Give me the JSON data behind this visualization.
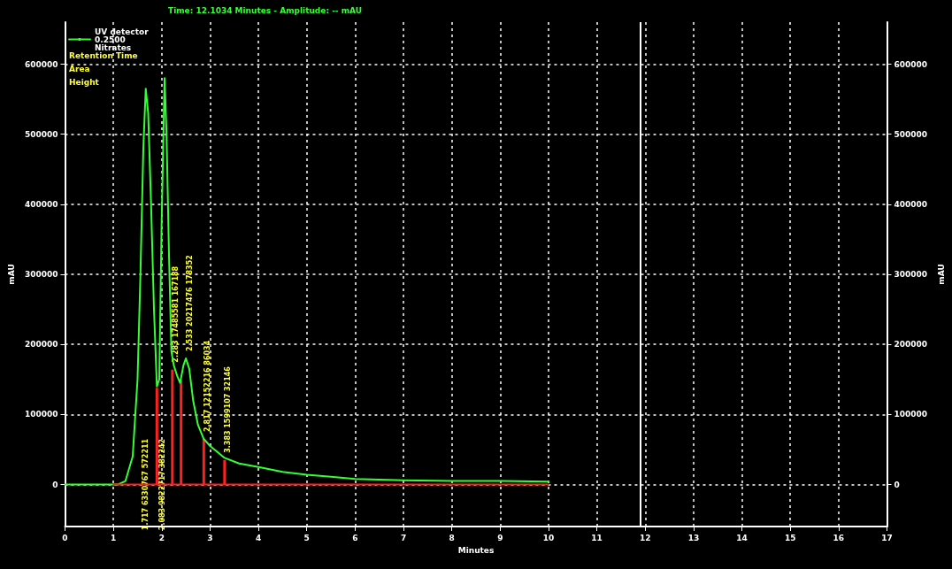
{
  "chart_data": {
    "type": "line",
    "title": "Time: 12.1034 Minutes - Amplitude: -- mAU",
    "xlabel": "Minutes",
    "ylabel": "mAU",
    "y2label": "mAU",
    "xlim": [
      0,
      17
    ],
    "xticks": [
      0,
      1,
      2,
      3,
      4,
      5,
      6,
      7,
      8,
      9,
      10,
      11,
      12,
      13,
      14,
      15,
      16,
      17
    ],
    "ylim": [
      -60000,
      660000
    ],
    "yticks": [
      0,
      100000,
      200000,
      300000,
      400000,
      500000,
      600000
    ],
    "y2lim": [
      -60000,
      660000
    ],
    "y2ticks": [
      0,
      100000,
      200000,
      300000,
      400000,
      500000,
      600000
    ],
    "grid": true,
    "legend": "top left",
    "marker": "none",
    "line_style": "solid",
    "series": [
      {
        "name": "UV detector 0.2500 Nitrates",
        "color": "#33ff33",
        "x": [
          0,
          1.1,
          1.25,
          1.4,
          1.5,
          1.56,
          1.62,
          1.67,
          1.72,
          1.78,
          1.84,
          1.9,
          1.95,
          2.0,
          2.06,
          2.1,
          2.15,
          2.2,
          2.25,
          2.32,
          2.38,
          2.45,
          2.5,
          2.57,
          2.65,
          2.75,
          2.87,
          3.0,
          3.3,
          3.6,
          4,
          4.5,
          5,
          5.5,
          6,
          7,
          8,
          9,
          10
        ],
        "values": [
          0,
          0,
          5000,
          40000,
          150000,
          300000,
          480000,
          565000,
          530000,
          400000,
          250000,
          140000,
          150000,
          380000,
          580000,
          500000,
          330000,
          190000,
          170000,
          155000,
          145000,
          170000,
          180000,
          165000,
          120000,
          85000,
          65000,
          55000,
          38000,
          30000,
          25000,
          18000,
          14000,
          11000,
          8000,
          6000,
          5000,
          5000,
          4000
        ]
      },
      {
        "type": "bar",
        "color": "#ff2020",
        "x": [
          1.9,
          2.22,
          2.4,
          2.87,
          3.3
        ],
        "values": [
          138000,
          164000,
          149000,
          65000,
          35000
        ]
      },
      {
        "color": "#ff2020",
        "x": [
          1.0,
          10.0
        ],
        "values": [
          0,
          0
        ]
      }
    ],
    "ref_lines": [
      {
        "axis": "x",
        "value": 11.9,
        "color": "#ffffff",
        "line_style": "solid"
      }
    ],
    "annotations": [
      "Retention Time",
      "Area",
      "Height",
      {
        "text": "1.717 6330767 572211",
        "x": 1.67,
        "y": 0
      },
      {
        "text": "2.083 9822717 382242",
        "x": 2.02,
        "y": 0
      },
      {
        "text": "2.283 17485581 167188",
        "x": 2.22,
        "y": 164000
      },
      {
        "text": "2.533 20217476 178352",
        "x": 2.5,
        "y": 180000
      },
      {
        "text": "2.817 12152216 86034",
        "x": 2.87,
        "y": 65000
      },
      {
        "text": "3.383 1599107 32146",
        "x": 3.3,
        "y": 35000
      }
    ]
  }
}
